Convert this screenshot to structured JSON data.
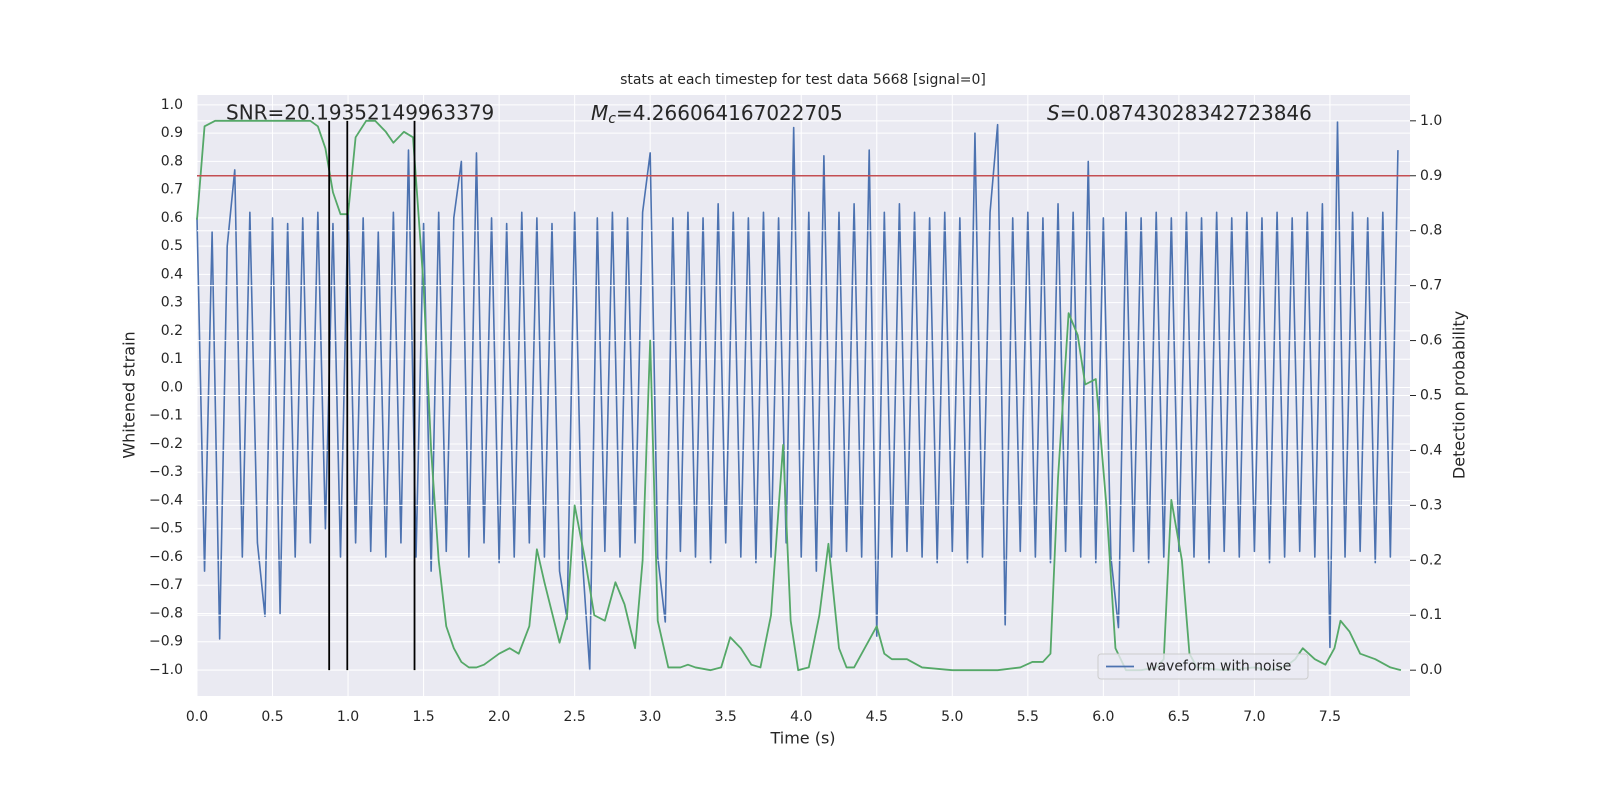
{
  "chart_data": {
    "type": "line",
    "title": "stats at each timestep for test data 5668 [signal=0]",
    "xlabel": "Time (s)",
    "ylabel": "Whitened strain",
    "y2label": "Detection probability",
    "annotations": [
      {
        "text": "SNR=20.19352149963379"
      },
      {
        "symbol": "M",
        "subscript": "c",
        "text": "=4.266064167022705"
      },
      {
        "symbol": "S",
        "text": "=0.08743028342723846"
      }
    ],
    "xlim": [
      0,
      8.03
    ],
    "ylim": [
      -1.092,
      1.035
    ],
    "y2lim": [
      -0.047,
      1.047
    ],
    "xticks": [
      {
        "value": 0,
        "label": "0.0"
      },
      0.5,
      {
        "value": 1,
        "label": "1.0"
      },
      1.5,
      {
        "value": 2,
        "label": "2.0"
      },
      2.5,
      {
        "value": 3,
        "label": "3.0"
      },
      3.5,
      {
        "value": 4,
        "label": "4.0"
      },
      4.5,
      {
        "value": 5,
        "label": "5.0"
      },
      5.5,
      {
        "value": 6,
        "label": "6.0"
      },
      6.5,
      {
        "value": 7,
        "label": "7.0"
      },
      7.5
    ],
    "yticks": [
      {
        "value": -1.0,
        "label": "−1.0"
      },
      {
        "value": -0.9,
        "label": "−0.9"
      },
      {
        "value": -0.8,
        "label": "−0.8"
      },
      {
        "value": -0.7,
        "label": "−0.7"
      },
      {
        "value": -0.6,
        "label": "−0.6"
      },
      {
        "value": -0.5,
        "label": "−0.5"
      },
      {
        "value": -0.4,
        "label": "−0.4"
      },
      {
        "value": -0.3,
        "label": "−0.3"
      },
      {
        "value": -0.2,
        "label": "−0.2"
      },
      {
        "value": -0.1,
        "label": "−0.1"
      },
      {
        "value": 0,
        "label": "0.0"
      },
      0.1,
      0.2,
      0.3,
      0.4,
      0.5,
      0.6,
      0.7,
      0.8,
      0.9,
      {
        "value": 1,
        "label": "1.0"
      }
    ],
    "y2ticks": [
      {
        "value": 0,
        "label": "0.0"
      },
      0.1,
      0.2,
      0.3,
      0.4,
      0.5,
      0.6,
      0.7,
      0.8,
      0.9,
      {
        "value": 1,
        "label": "1.0"
      }
    ],
    "grid": true,
    "legend": "lower right",
    "series": [
      {
        "name": "waveform with noise",
        "color": "#4c72b0",
        "x": [
          0,
          0.05,
          0.1,
          0.15,
          0.2,
          0.25,
          0.3,
          0.35,
          0.4,
          0.45,
          0.5,
          0.55,
          0.6,
          0.65,
          0.7,
          0.75,
          0.8,
          0.85,
          0.9,
          0.95,
          1,
          1.05,
          1.1,
          1.15,
          1.2,
          1.25,
          1.3,
          1.35,
          1.4,
          1.45,
          1.5,
          1.55,
          1.6,
          1.65,
          1.7,
          1.75,
          1.8,
          1.85,
          1.9,
          1.95,
          2,
          2.05,
          2.1,
          2.15,
          2.2,
          2.25,
          2.3,
          2.35,
          2.4,
          2.45,
          2.5,
          2.55,
          2.6,
          2.65,
          2.7,
          2.75,
          2.8,
          2.85,
          2.9,
          2.95,
          3,
          3.05,
          3.1,
          3.15,
          3.2,
          3.25,
          3.3,
          3.35,
          3.4,
          3.45,
          3.5,
          3.55,
          3.6,
          3.65,
          3.7,
          3.75,
          3.8,
          3.85,
          3.9,
          3.95,
          4,
          4.05,
          4.1,
          4.15,
          4.2,
          4.25,
          4.3,
          4.35,
          4.4,
          4.45,
          4.5,
          4.55,
          4.6,
          4.65,
          4.7,
          4.75,
          4.8,
          4.85,
          4.9,
          4.95,
          5,
          5.05,
          5.1,
          5.15,
          5.2,
          5.25,
          5.3,
          5.35,
          5.4,
          5.45,
          5.5,
          5.55,
          5.6,
          5.65,
          5.7,
          5.75,
          5.8,
          5.85,
          5.9,
          5.95,
          6,
          6.05,
          6.1,
          6.15,
          6.2,
          6.25,
          6.3,
          6.35,
          6.4,
          6.45,
          6.5,
          6.55,
          6.6,
          6.65,
          6.7,
          6.75,
          6.8,
          6.85,
          6.9,
          6.95,
          7,
          7.05,
          7.1,
          7.15,
          7.2,
          7.25,
          7.3,
          7.35,
          7.4,
          7.45,
          7.5,
          7.55,
          7.6,
          7.65,
          7.7,
          7.75,
          7.8,
          7.85,
          7.9,
          7.95
        ],
        "values": [
          0.6,
          -0.65,
          0.55,
          -0.89,
          0.5,
          0.77,
          -0.6,
          0.62,
          -0.55,
          -0.81,
          0.6,
          -0.8,
          0.58,
          -0.6,
          0.6,
          -0.55,
          0.62,
          -0.5,
          0.58,
          -0.6,
          0.65,
          -0.55,
          0.6,
          -0.58,
          0.55,
          -0.6,
          0.62,
          -0.55,
          0.84,
          -0.6,
          0.58,
          -0.65,
          0.62,
          -0.58,
          0.6,
          0.8,
          -0.6,
          0.83,
          -0.55,
          0.6,
          -0.62,
          0.58,
          -0.6,
          0.62,
          -0.55,
          0.6,
          -0.6,
          0.58,
          -0.65,
          -0.82,
          0.62,
          -0.6,
          -1.0,
          0.6,
          -0.58,
          0.62,
          -0.6,
          0.6,
          -0.55,
          0.62,
          0.83,
          -0.6,
          -0.83,
          0.6,
          -0.58,
          0.62,
          -0.6,
          0.6,
          -0.62,
          0.65,
          -0.55,
          0.62,
          -0.6,
          0.6,
          -0.62,
          0.62,
          -0.6,
          0.6,
          -0.55,
          0.92,
          -0.6,
          0.62,
          -0.65,
          0.82,
          -0.6,
          0.62,
          -0.58,
          0.65,
          -0.6,
          0.84,
          -0.88,
          0.62,
          -0.6,
          0.65,
          -0.58,
          0.62,
          -0.6,
          0.6,
          -0.62,
          0.62,
          -0.58,
          0.6,
          -0.62,
          0.9,
          -0.6,
          0.62,
          0.93,
          -0.84,
          0.6,
          -0.58,
          0.62,
          -0.6,
          0.6,
          -0.62,
          0.65,
          -0.58,
          0.62,
          -0.6,
          0.8,
          -0.62,
          0.6,
          -0.6,
          -0.85,
          0.62,
          -0.58,
          0.6,
          -0.62,
          0.62,
          -0.6,
          0.6,
          -0.58,
          0.62,
          -0.6,
          0.6,
          -0.62,
          0.62,
          -0.58,
          0.6,
          -0.6,
          0.62,
          -0.58,
          0.6,
          -0.62,
          0.62,
          -0.6,
          0.6,
          -0.58,
          0.62,
          -0.6,
          0.65,
          -0.92,
          0.94,
          -0.6,
          0.62,
          -0.58,
          0.6,
          -0.62,
          0.62,
          -0.6,
          0.84
        ]
      },
      {
        "color": "#55a868",
        "axis": "y2",
        "x": [
          0,
          0.05,
          0.12,
          0.5,
          0.75,
          0.8,
          0.85,
          0.9,
          0.95,
          1.0,
          1.05,
          1.12,
          1.18,
          1.25,
          1.3,
          1.37,
          1.43,
          1.5,
          1.55,
          1.6,
          1.65,
          1.7,
          1.75,
          1.8,
          1.85,
          1.9,
          1.95,
          2.0,
          2.07,
          2.13,
          2.2,
          2.25,
          2.3,
          2.4,
          2.45,
          2.5,
          2.57,
          2.63,
          2.7,
          2.77,
          2.83,
          2.9,
          2.95,
          3.0,
          3.05,
          3.12,
          3.2,
          3.25,
          3.3,
          3.4,
          3.47,
          3.53,
          3.6,
          3.67,
          3.73,
          3.8,
          3.88,
          3.93,
          3.98,
          4.05,
          4.12,
          4.18,
          4.25,
          4.3,
          4.35,
          4.4,
          4.5,
          4.55,
          4.6,
          4.7,
          4.8,
          5.0,
          5.3,
          5.45,
          5.53,
          5.6,
          5.65,
          5.7,
          5.77,
          5.83,
          5.88,
          5.95,
          6.02,
          6.08,
          6.15,
          6.25,
          6.35,
          6.4,
          6.45,
          6.52,
          6.57,
          6.62,
          6.8,
          7.0,
          7.1,
          7.2,
          7.27,
          7.32,
          7.4,
          7.47,
          7.53,
          7.57,
          7.63,
          7.7,
          7.8,
          7.9,
          7.97
        ],
        "values": [
          0.82,
          0.99,
          1.0,
          1.0,
          1.0,
          0.99,
          0.95,
          0.87,
          0.83,
          0.83,
          0.97,
          1.0,
          1.0,
          0.98,
          0.96,
          0.98,
          0.97,
          0.7,
          0.4,
          0.2,
          0.08,
          0.04,
          0.015,
          0.005,
          0.005,
          0.01,
          0.02,
          0.03,
          0.04,
          0.03,
          0.08,
          0.22,
          0.16,
          0.05,
          0.1,
          0.3,
          0.2,
          0.1,
          0.09,
          0.16,
          0.12,
          0.04,
          0.2,
          0.6,
          0.09,
          0.005,
          0.005,
          0.01,
          0.005,
          0.0,
          0.005,
          0.06,
          0.04,
          0.01,
          0.005,
          0.1,
          0.41,
          0.09,
          0.0,
          0.005,
          0.1,
          0.23,
          0.04,
          0.005,
          0.005,
          0.03,
          0.08,
          0.03,
          0.02,
          0.02,
          0.005,
          0.0,
          0.0,
          0.005,
          0.015,
          0.015,
          0.03,
          0.35,
          0.65,
          0.61,
          0.52,
          0.53,
          0.3,
          0.04,
          0.0,
          0.0,
          0.005,
          0.02,
          0.31,
          0.2,
          0.03,
          0.005,
          0.0,
          0.005,
          0.0,
          0.005,
          0.02,
          0.04,
          0.02,
          0.01,
          0.04,
          0.09,
          0.07,
          0.03,
          0.02,
          0.005,
          0.0
        ]
      }
    ],
    "hline": {
      "y": 0.9,
      "axis": "y2",
      "color": "#c44e52"
    },
    "vlines": {
      "x": [
        0.875,
        0.995,
        1.44
      ],
      "ymin": 0,
      "ymax": 1,
      "axis": "y2",
      "color": "#000000"
    }
  }
}
